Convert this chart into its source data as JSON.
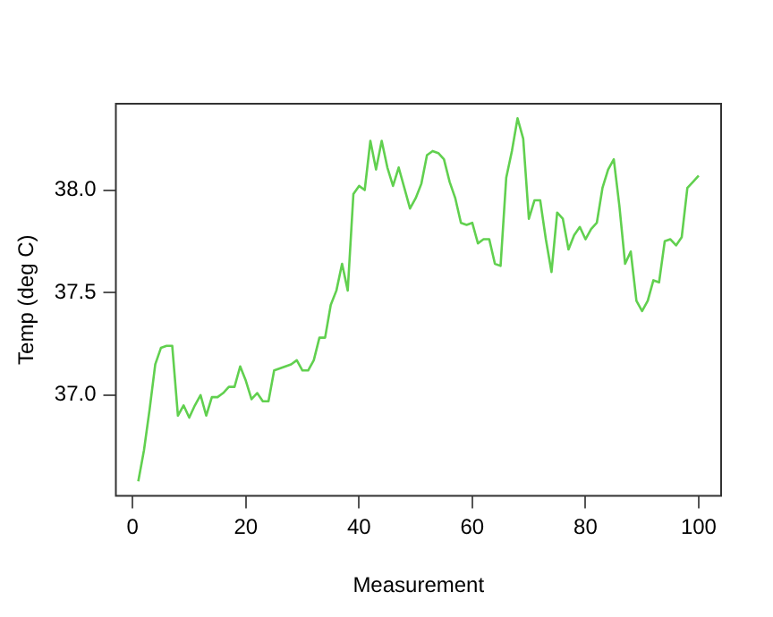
{
  "chart_data": {
    "type": "line",
    "xlabel": "Measurement",
    "ylabel": "Temp (deg C)",
    "x": [
      1,
      2,
      3,
      4,
      5,
      6,
      7,
      8,
      9,
      10,
      11,
      12,
      13,
      14,
      15,
      16,
      17,
      18,
      19,
      20,
      21,
      22,
      23,
      24,
      25,
      26,
      27,
      28,
      29,
      30,
      31,
      32,
      33,
      34,
      35,
      36,
      37,
      38,
      39,
      40,
      41,
      42,
      43,
      44,
      45,
      46,
      47,
      48,
      49,
      50,
      51,
      52,
      53,
      54,
      55,
      56,
      57,
      58,
      59,
      60,
      61,
      62,
      63,
      64,
      65,
      66,
      67,
      68,
      69,
      70,
      71,
      72,
      73,
      74,
      75,
      76,
      77,
      78,
      79,
      80,
      81,
      82,
      83,
      84,
      85,
      86,
      87,
      88,
      89,
      90,
      91,
      92,
      93,
      94,
      95,
      96,
      97,
      98,
      99,
      100
    ],
    "series": [
      {
        "color": "#61d04f",
        "values": [
          36.58,
          36.73,
          36.93,
          37.15,
          37.23,
          37.24,
          37.24,
          36.9,
          36.95,
          36.89,
          36.95,
          37.0,
          36.9,
          36.99,
          36.99,
          37.01,
          37.04,
          37.04,
          37.14,
          37.07,
          36.98,
          37.01,
          36.97,
          36.97,
          37.12,
          37.13,
          37.14,
          37.15,
          37.17,
          37.12,
          37.12,
          37.17,
          37.28,
          37.28,
          37.44,
          37.51,
          37.64,
          37.51,
          37.98,
          38.02,
          38.0,
          38.24,
          38.1,
          38.24,
          38.11,
          38.02,
          38.11,
          38.01,
          37.91,
          37.96,
          38.03,
          38.17,
          38.19,
          38.18,
          38.15,
          38.04,
          37.96,
          37.84,
          37.83,
          37.84,
          37.74,
          37.76,
          37.76,
          37.64,
          37.63,
          38.06,
          38.19,
          38.35,
          38.25,
          37.86,
          37.95,
          37.95,
          37.76,
          37.6,
          37.89,
          37.86,
          37.71,
          37.78,
          37.82,
          37.76,
          37.81,
          37.84,
          38.01,
          38.1,
          38.15,
          37.92,
          37.64,
          37.7,
          37.46,
          37.41,
          37.46,
          37.56,
          37.55,
          37.75,
          37.76,
          37.73,
          37.77,
          38.01,
          38.04,
          38.07
        ]
      }
    ],
    "xlim": [
      -2.96,
      103.96
    ],
    "ylim": [
      36.5092,
      38.4208
    ],
    "xticks": [
      0,
      20,
      40,
      60,
      80,
      100
    ],
    "yticks": [
      {
        "value": 37,
        "label": "37.0"
      },
      {
        "value": 37.5,
        "label": "37.5"
      },
      {
        "value": 38,
        "label": "38.0"
      }
    ],
    "grid": false,
    "legend": false,
    "marker": "none",
    "line_style": "solid"
  }
}
